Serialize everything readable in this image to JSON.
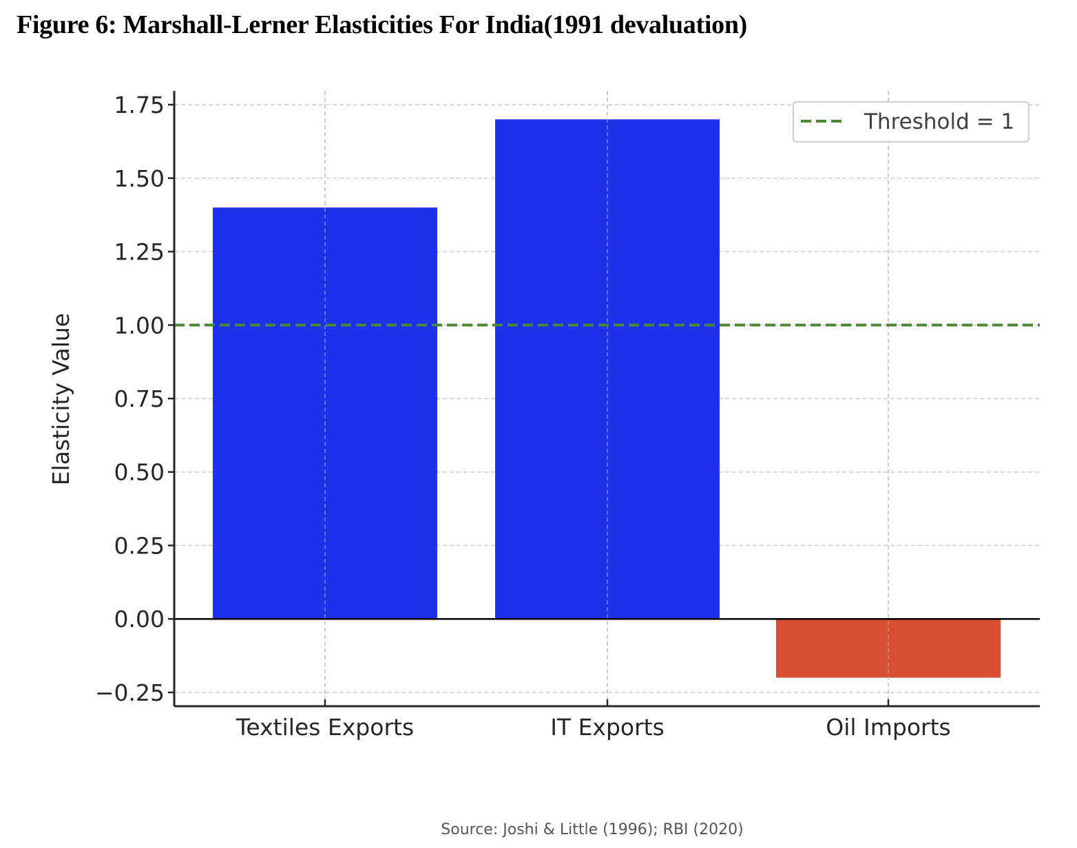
{
  "figure": {
    "caption": "Figure 6: Marshall-Lerner Elasticities For India(1991 devaluation)"
  },
  "chart_data": {
    "type": "bar",
    "title": "",
    "categories": [
      "Textiles Exports",
      "IT Exports",
      "Oil Imports"
    ],
    "values": [
      1.4,
      1.7,
      -0.2
    ],
    "bar_colors": [
      "#1f31e9",
      "#1f31e9",
      "#d94f33"
    ],
    "xlabel": "",
    "ylabel": "Elasticity Value",
    "ylim": [
      -0.3,
      1.8
    ],
    "yticks": [
      -0.25,
      0.0,
      0.25,
      0.5,
      0.75,
      1.0,
      1.25,
      1.5,
      1.75
    ],
    "ytick_labels": [
      "−0.25",
      "0.00",
      "0.25",
      "0.50",
      "0.75",
      "1.00",
      "1.25",
      "1.50",
      "1.75"
    ],
    "grid": true,
    "reference_lines": [
      {
        "type": "horizontal",
        "y": 1.0,
        "style": "dashed",
        "color": "#4a8a2e",
        "label": "Threshold = 1"
      },
      {
        "type": "horizontal",
        "y": 0.0,
        "style": "solid",
        "color": "#000000"
      }
    ],
    "legend": {
      "entries": [
        "Threshold = 1"
      ],
      "placement": "top-right"
    },
    "source": "Source: Joshi & Little (1996); RBI (2020)"
  }
}
